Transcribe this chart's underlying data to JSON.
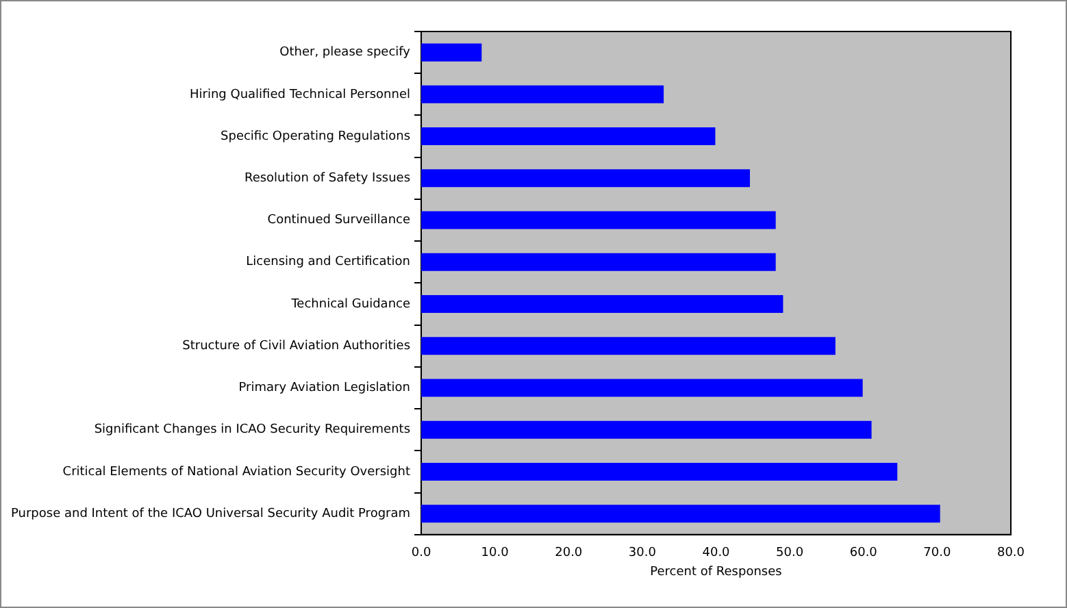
{
  "chart_data": {
    "type": "bar",
    "orientation": "horizontal",
    "xlabel": "Percent of Responses",
    "categories": [
      "Other, please specify",
      "Hiring Qualified Technical Personnel",
      "Specific Operating Regulations",
      "Resolution of Safety Issues",
      "Continued Surveillance",
      "Licensing and Certification",
      "Technical Guidance",
      "Structure of Civil Aviation Authorities",
      "Primary Aviation Legislation",
      "Significant Changes in ICAO Security Requirements",
      "Critical Elements of National Aviation Security Oversight",
      "Purpose and Intent of the ICAO Universal Security Audit Program"
    ],
    "values": [
      8.2,
      32.9,
      39.9,
      44.6,
      48.1,
      48.1,
      49.1,
      56.2,
      59.9,
      61.1,
      64.6,
      70.4
    ],
    "color": "#0000ff",
    "xlim": [
      0,
      80
    ],
    "xticks": [
      {
        "value": 0,
        "label": "0.0"
      },
      {
        "value": 10,
        "label": "10.0"
      },
      {
        "value": 20,
        "label": "20.0"
      },
      {
        "value": 30,
        "label": "30.0"
      },
      {
        "value": 40,
        "label": "40.0"
      },
      {
        "value": 50,
        "label": "50.0"
      },
      {
        "value": 60,
        "label": "60.0"
      },
      {
        "value": 70,
        "label": "70.0"
      },
      {
        "value": 80,
        "label": "80.0"
      }
    ],
    "grid": false,
    "legend": false
  }
}
